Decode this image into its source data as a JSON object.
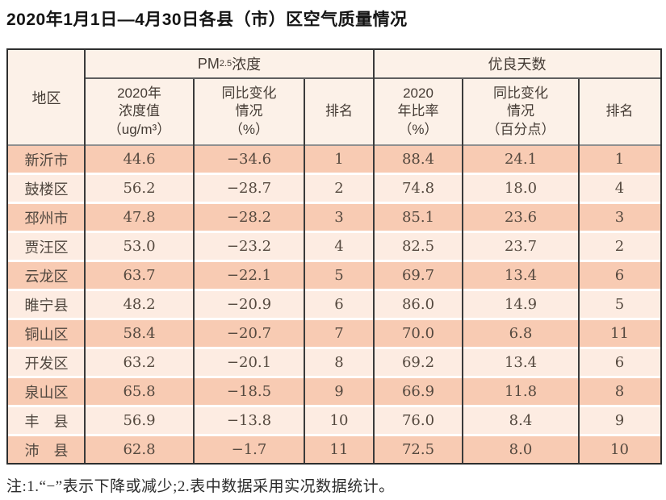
{
  "title": "2020年1月1日—4月30日各县（市）区空气质量情况",
  "note": "注:1.“−”表示下降或减少;2.表中数据采用实况数据统计。",
  "colors": {
    "row_odd": "#f8cbb3",
    "row_even": "#fdece2",
    "header_bg": "#fcf1e8",
    "border": "#2e2e2e"
  },
  "table": {
    "region_header": "地区",
    "groups": {
      "pm": {
        "prefix": "PM",
        "sub": "2.5",
        "suffix": " 浓度"
      },
      "good": {
        "label": "优良天数"
      }
    },
    "subheaders": {
      "pm_value": "2020年\n浓度值\n（ug/m³）",
      "pm_change": "同比变化\n情况\n（%）",
      "pm_rank": "排名",
      "good_ratio": "2020\n年比率\n（%）",
      "good_change": "同比变化\n情况\n（百分点）",
      "good_rank": "排名"
    },
    "rows": [
      {
        "region": "新沂市",
        "pm_value": "44.6",
        "pm_change": "−34.6",
        "pm_rank": "1",
        "good_ratio": "88.4",
        "good_change": "24.1",
        "good_rank": "1"
      },
      {
        "region": "鼓楼区",
        "pm_value": "56.2",
        "pm_change": "−28.7",
        "pm_rank": "2",
        "good_ratio": "74.8",
        "good_change": "18.0",
        "good_rank": "4"
      },
      {
        "region": "邳州市",
        "pm_value": "47.8",
        "pm_change": "−28.2",
        "pm_rank": "3",
        "good_ratio": "85.1",
        "good_change": "23.6",
        "good_rank": "3"
      },
      {
        "region": "贾汪区",
        "pm_value": "53.0",
        "pm_change": "−23.2",
        "pm_rank": "4",
        "good_ratio": "82.5",
        "good_change": "23.7",
        "good_rank": "2"
      },
      {
        "region": "云龙区",
        "pm_value": "63.7",
        "pm_change": "−22.1",
        "pm_rank": "5",
        "good_ratio": "69.7",
        "good_change": "13.4",
        "good_rank": "6"
      },
      {
        "region": "睢宁县",
        "pm_value": "48.2",
        "pm_change": "−20.9",
        "pm_rank": "6",
        "good_ratio": "86.0",
        "good_change": "14.9",
        "good_rank": "5"
      },
      {
        "region": "铜山区",
        "pm_value": "58.4",
        "pm_change": "−20.7",
        "pm_rank": "7",
        "good_ratio": "70.0",
        "good_change": "6.8",
        "good_rank": "11"
      },
      {
        "region": "开发区",
        "pm_value": "63.2",
        "pm_change": "−20.1",
        "pm_rank": "8",
        "good_ratio": "69.2",
        "good_change": "13.4",
        "good_rank": "6"
      },
      {
        "region": "泉山区",
        "pm_value": "65.8",
        "pm_change": "−18.5",
        "pm_rank": "9",
        "good_ratio": "66.9",
        "good_change": "11.8",
        "good_rank": "8"
      },
      {
        "region": "丰　县",
        "pm_value": "56.9",
        "pm_change": "−13.8",
        "pm_rank": "10",
        "good_ratio": "76.0",
        "good_change": "8.4",
        "good_rank": "9"
      },
      {
        "region": "沛　县",
        "pm_value": "62.8",
        "pm_change": "−1.7",
        "pm_rank": "11",
        "good_ratio": "72.5",
        "good_change": "8.0",
        "good_rank": "10"
      }
    ]
  }
}
